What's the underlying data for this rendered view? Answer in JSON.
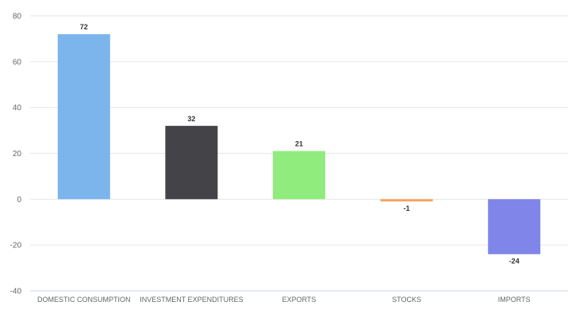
{
  "chart_data": {
    "type": "bar",
    "categories": [
      "DOMESTIC CONSUMPTION",
      "INVESTMENT EXPENDITURES",
      "EXPORTS",
      "STOCKS",
      "IMPORTS"
    ],
    "values": [
      72,
      32,
      21,
      -1,
      -24
    ],
    "value_labels": [
      "72",
      "32",
      "21",
      "-1",
      "-24"
    ],
    "colors": [
      "#7cb5ec",
      "#434348",
      "#90ed7d",
      "#f7a35c",
      "#8085e9"
    ],
    "title": "",
    "xlabel": "",
    "ylabel": "",
    "ylim": [
      -40,
      80
    ],
    "yticks": [
      80,
      60,
      40,
      20,
      0,
      -20,
      -40
    ],
    "grid": true,
    "legend": "none"
  }
}
